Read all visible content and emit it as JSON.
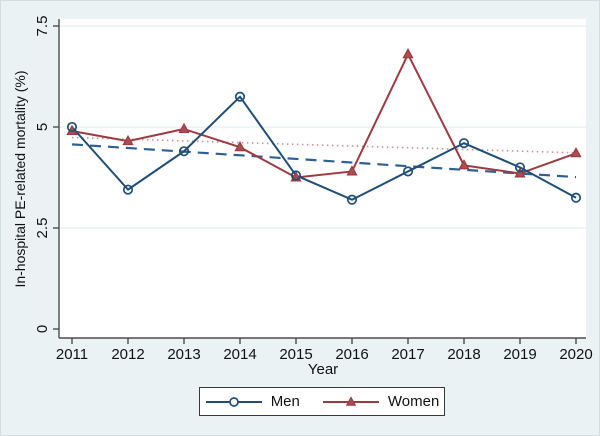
{
  "figure": {
    "background": "#eaf2f3",
    "plot_background": "#ffffff",
    "axis_color": "#4d4d4d",
    "grid_color": "#dfeaec",
    "text_color": "#111111"
  },
  "chart_data": {
    "type": "line",
    "title": "",
    "xlabel": "Year",
    "ylabel": "In-hospital PE-related mortality (%)",
    "categories": [
      "2011",
      "2012",
      "2013",
      "2014",
      "2015",
      "2016",
      "2017",
      "2018",
      "2019",
      "2020"
    ],
    "yticks": [
      0,
      2.5,
      5,
      7.5
    ],
    "ytick_labels": [
      "0",
      "2.5",
      "5",
      "7.5"
    ],
    "ylim": [
      0,
      7.5
    ],
    "grid": true,
    "legend_position": "bottom-center",
    "series": [
      {
        "name": "Men",
        "color": "#1f4e79",
        "marker": "circle",
        "line_style": "solid",
        "values": [
          5.0,
          3.45,
          4.4,
          5.75,
          3.8,
          3.2,
          3.9,
          4.6,
          4.0,
          3.25
        ]
      },
      {
        "name": "Women",
        "color": "#9e3a41",
        "marker": "triangle",
        "marker_fill": "#aa4e55",
        "line_style": "solid",
        "values": [
          4.9,
          4.65,
          4.95,
          4.5,
          3.75,
          3.9,
          6.8,
          4.05,
          3.85,
          4.35
        ]
      }
    ],
    "trend_lines": [
      {
        "series": "Men",
        "style": "dashed",
        "color": "#2e6094",
        "start_value": 4.57,
        "end_value": 3.76
      },
      {
        "series": "Women",
        "style": "dotted",
        "color": "#cc8e93",
        "start_value": 4.74,
        "end_value": 4.36
      }
    ]
  }
}
